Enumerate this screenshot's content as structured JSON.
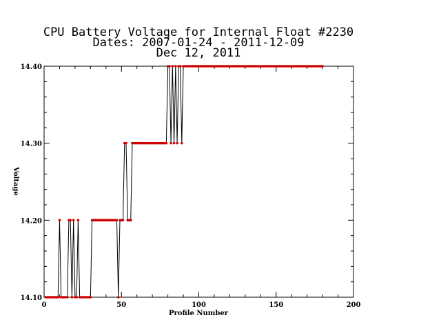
{
  "chart_data": {
    "type": "line",
    "title_lines": [
      "CPU Battery Voltage for Internal Float #2230",
      "Dates:  2007-01-24 -  2011-12-09",
      "Dec 12, 2011"
    ],
    "xlabel": "Profile Number",
    "ylabel": "Voltage",
    "xlim": [
      0,
      200
    ],
    "ylim": [
      14.1,
      14.4
    ],
    "x_ticks": [
      "0",
      "50",
      "100",
      "150",
      "200"
    ],
    "y_ticks": [
      "14.10",
      "14.20",
      "14.30",
      "14.40"
    ],
    "grid": false,
    "line_color": "#000000",
    "marker_color": "#cc0000",
    "series": [
      {
        "x": [
          1,
          2,
          3,
          4,
          5,
          6,
          7,
          8,
          9,
          10,
          11,
          12,
          13,
          14,
          15,
          16,
          17,
          18,
          19,
          20,
          21,
          22,
          23,
          24,
          25,
          26,
          27,
          28,
          29,
          30,
          31,
          32,
          33,
          34,
          35,
          36,
          37,
          38,
          39,
          40,
          41,
          42,
          43,
          44,
          45,
          46,
          47,
          48,
          49,
          50,
          51,
          52,
          53,
          54,
          55,
          56,
          57,
          58,
          59,
          60,
          61,
          62,
          63,
          64,
          65,
          66,
          67,
          68,
          69,
          70,
          71,
          72,
          73,
          74,
          75,
          76,
          77,
          78,
          79,
          80,
          81,
          82,
          83,
          84,
          85,
          86,
          87,
          88,
          89,
          90,
          91,
          92,
          93,
          94,
          95,
          96,
          97,
          98,
          99,
          100,
          101,
          102,
          103,
          104,
          105,
          106,
          107,
          108,
          109,
          110,
          111,
          112,
          113,
          114,
          115,
          116,
          117,
          118,
          119,
          120,
          121,
          122,
          123,
          124,
          125,
          126,
          127,
          128,
          129,
          130,
          131,
          132,
          133,
          134,
          135,
          136,
          137,
          138,
          139,
          140,
          141,
          142,
          143,
          144,
          145,
          146,
          147,
          148,
          149,
          150,
          151,
          152,
          153,
          154,
          155,
          156,
          157,
          158,
          159,
          160,
          161,
          162,
          163,
          164,
          165,
          166,
          167,
          168,
          169,
          170,
          171,
          172,
          173,
          174,
          175,
          176,
          177,
          178,
          179,
          180
        ],
        "y": [
          14.1,
          14.1,
          14.1,
          14.1,
          14.1,
          14.1,
          14.1,
          14.1,
          14.1,
          14.2,
          14.1,
          14.1,
          14.1,
          14.1,
          14.1,
          14.2,
          14.2,
          14.1,
          14.2,
          14.1,
          14.1,
          14.2,
          14.1,
          14.1,
          14.1,
          14.1,
          14.1,
          14.1,
          14.1,
          14.1,
          14.2,
          14.2,
          14.2,
          14.2,
          14.2,
          14.2,
          14.2,
          14.2,
          14.2,
          14.2,
          14.2,
          14.2,
          14.2,
          14.2,
          14.2,
          14.2,
          14.2,
          14.1,
          14.2,
          14.2,
          14.2,
          14.3,
          14.3,
          14.2,
          14.2,
          14.2,
          14.3,
          14.3,
          14.3,
          14.3,
          14.3,
          14.3,
          14.3,
          14.3,
          14.3,
          14.3,
          14.3,
          14.3,
          14.3,
          14.3,
          14.3,
          14.3,
          14.3,
          14.3,
          14.3,
          14.3,
          14.3,
          14.3,
          14.3,
          14.4,
          14.4,
          14.3,
          14.4,
          14.3,
          14.4,
          14.3,
          14.4,
          14.4,
          14.3,
          14.4,
          14.4,
          14.4,
          14.4,
          14.4,
          14.4,
          14.4,
          14.4,
          14.4,
          14.4,
          14.4,
          14.4,
          14.4,
          14.4,
          14.4,
          14.4,
          14.4,
          14.4,
          14.4,
          14.4,
          14.4,
          14.4,
          14.4,
          14.4,
          14.4,
          14.4,
          14.4,
          14.4,
          14.4,
          14.4,
          14.4,
          14.4,
          14.4,
          14.4,
          14.4,
          14.4,
          14.4,
          14.4,
          14.4,
          14.4,
          14.4,
          14.4,
          14.4,
          14.4,
          14.4,
          14.4,
          14.4,
          14.4,
          14.4,
          14.4,
          14.4,
          14.4,
          14.4,
          14.4,
          14.4,
          14.4,
          14.4,
          14.4,
          14.4,
          14.4,
          14.4,
          14.4,
          14.4,
          14.4,
          14.4,
          14.4,
          14.4,
          14.4,
          14.4,
          14.4,
          14.4,
          14.4,
          14.4,
          14.4,
          14.4,
          14.4,
          14.4,
          14.4,
          14.4,
          14.4,
          14.4,
          14.4,
          14.4,
          14.4,
          14.4,
          14.4,
          14.4,
          14.4,
          14.4,
          14.4,
          14.4
        ]
      }
    ]
  }
}
